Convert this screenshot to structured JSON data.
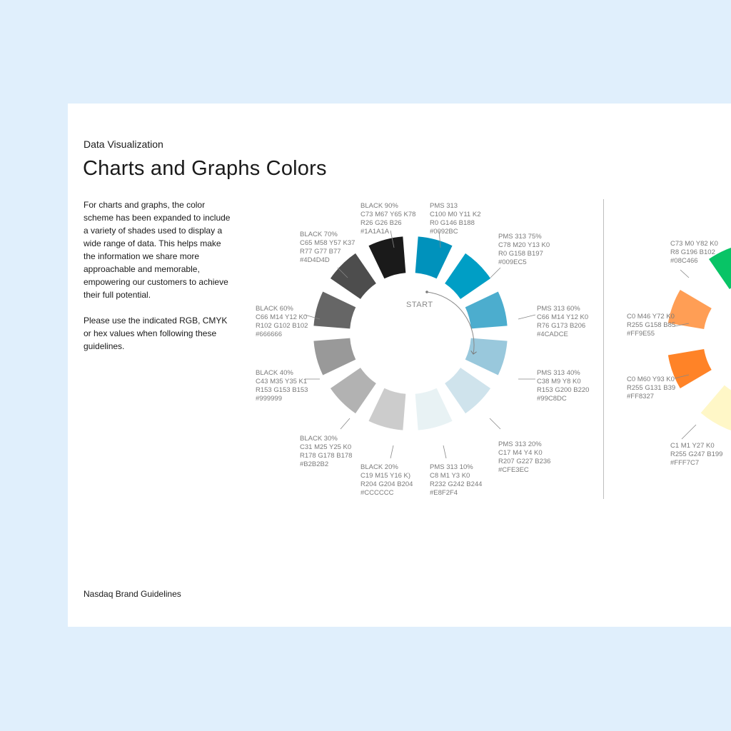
{
  "header": {
    "section": "Data Visualization",
    "title": "Charts and Graphs Colors"
  },
  "body": {
    "p1": "For charts and graphs, the color scheme has been expanded to include a variety of shades used to display a wide range of data. This helps make the information we share more approachable and memorable, empowering our customers to achieve their full potential.",
    "p2": "Please use the indicated RGB, CMYK or hex values when following these guidelines."
  },
  "footer": {
    "text": "Nasdaq Brand Guidelines"
  },
  "wheel": {
    "start_label": "START",
    "swatches": [
      {
        "hex": "#0092BC",
        "lines": [
          "PMS 313",
          "C100 M0 Y11 K2",
          "R0 G146 B188",
          "#0092BC"
        ]
      },
      {
        "hex": "#009EC5",
        "lines": [
          "PMS 313 75%",
          "C78 M20 Y13 K0",
          "R0 G158 B197",
          "#009EC5"
        ]
      },
      {
        "hex": "#4CADCE",
        "lines": [
          "PMS 313 60%",
          "C66 M14 Y12 K0",
          "R76 G173 B206",
          "#4CADCE"
        ]
      },
      {
        "hex": "#99C8DC",
        "lines": [
          "PMS 313 40%",
          "C38 M9 Y8 K0",
          "R153 G200 B220",
          "#99C8DC"
        ]
      },
      {
        "hex": "#CFE3EC",
        "lines": [
          "PMS 313 20%",
          "C17 M4 Y4 K0",
          "R207 G227 B236",
          "#CFE3EC"
        ]
      },
      {
        "hex": "#E8F2F4",
        "lines": [
          "PMS 313 10%",
          "C8 M1 Y3 K0",
          "R232 G242 B244",
          "#E8F2F4"
        ]
      },
      {
        "hex": "#CCCCCC",
        "lines": [
          "BLACK 20%",
          "C19 M15 Y16 K)",
          "R204 G204 B204",
          "#CCCCCC"
        ]
      },
      {
        "hex": "#B2B2B2",
        "lines": [
          "BLACK 30%",
          "C31 M25 Y25 K0",
          "R178 G178 B178",
          "#B2B2B2"
        ]
      },
      {
        "hex": "#999999",
        "lines": [
          "BLACK 40%",
          "C43 M35 Y35 K1",
          "R153 G153 B153",
          "#999999"
        ]
      },
      {
        "hex": "#666666",
        "lines": [
          "BLACK 60%",
          "C66 M14 Y12 K0",
          "R102 G102 B102",
          "#666666"
        ]
      },
      {
        "hex": "#4D4D4D",
        "lines": [
          "BLACK 70%",
          "C65 M58 Y57 K37",
          "R77 G77 B77",
          "#4D4D4D"
        ]
      },
      {
        "hex": "#1A1A1A",
        "lines": [
          "BLACK 90%",
          "C73 M67 Y65 K78",
          "R26 G26 B26",
          "#1A1A1A"
        ]
      }
    ]
  },
  "wheel2": {
    "swatches": [
      {
        "hex": "#08C466",
        "lines": [
          "C73 M0 Y82 K0",
          "R8 G196 B102",
          "#08C466"
        ]
      },
      {
        "hex": "#FF9E55",
        "lines": [
          "C0 M46 Y72 K0",
          "R255 G158 B85",
          "#FF9E55"
        ]
      },
      {
        "hex": "#FF8327",
        "lines": [
          "C0 M60 Y93 K0",
          "R255 G131 B39",
          "#FF8327"
        ]
      },
      {
        "hex": "#FFF7C7",
        "lines": [
          "C1 M1 Y27 K0",
          "R255 G247 B199",
          "#FFF7C7"
        ]
      }
    ]
  }
}
